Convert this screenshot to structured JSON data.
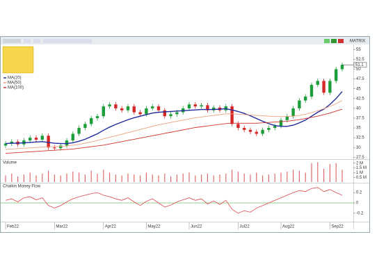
{
  "toolbar": {
    "label": "MATRIX"
  },
  "chart_data": [
    {
      "type": "candlestick",
      "categories": [
        "Feb22",
        null,
        null,
        null,
        null,
        null,
        null,
        null,
        "Mar22",
        null,
        null,
        null,
        null,
        null,
        null,
        null,
        "Apr22",
        null,
        null,
        null,
        null,
        null,
        null,
        "May22",
        null,
        null,
        null,
        null,
        null,
        null,
        "Jun22",
        null,
        null,
        null,
        null,
        null,
        null,
        null,
        "Jul22",
        null,
        null,
        null,
        null,
        null,
        null,
        "Aug22",
        null,
        null,
        null,
        null,
        null,
        null,
        null,
        "Sep22",
        null,
        null
      ],
      "open": [
        30.5,
        31,
        31.5,
        30.8,
        31.8,
        32.5,
        32,
        33,
        30,
        29.8,
        30.5,
        31.8,
        33.5,
        35,
        36,
        37.5,
        38,
        40.5,
        41,
        40,
        39.5,
        40.5,
        39,
        38.5,
        40,
        40.5,
        39.5,
        38,
        38.5,
        39,
        40,
        41,
        40.5,
        40.8,
        39.5,
        40.2,
        39.5,
        40.5,
        36,
        35,
        34.5,
        34,
        33.5,
        34.5,
        35,
        35.5,
        37,
        38,
        40,
        42,
        43,
        46,
        47,
        44,
        47,
        50
      ],
      "high": [
        31.6,
        32.1,
        32.1,
        32.4,
        33.1,
        33.1,
        33.6,
        33.6,
        30.6,
        31.1,
        32.4,
        34.1,
        35.6,
        36.6,
        38.1,
        38.6,
        41.1,
        41.6,
        41.6,
        40.6,
        41.1,
        41.1,
        39.6,
        40.6,
        41.1,
        41.1,
        40.1,
        39.1,
        39.6,
        40.6,
        41.6,
        41.6,
        41.4,
        41.4,
        40.8,
        40.8,
        41.1,
        41.1,
        36.6,
        35.6,
        35.1,
        34.6,
        35.1,
        35.6,
        36.1,
        37.6,
        38.6,
        40.6,
        42.6,
        43.6,
        46.6,
        47.6,
        47.6,
        47.6,
        50.6,
        51.7
      ],
      "low": [
        29.9,
        30.4,
        30.2,
        30.2,
        31.2,
        31.4,
        31.4,
        29.4,
        29.2,
        29.2,
        29.9,
        31.2,
        32.9,
        34.4,
        35.4,
        36.9,
        37.4,
        39.9,
        39.4,
        38.9,
        38.9,
        38.4,
        37.9,
        37.9,
        39.4,
        38.9,
        37.4,
        37.4,
        37.9,
        38.4,
        39.4,
        39.9,
        39.9,
        38.9,
        38.9,
        38.9,
        38.9,
        35.4,
        34.4,
        33.9,
        33.4,
        32.9,
        32.9,
        33.9,
        34.4,
        34.9,
        36.4,
        37.4,
        39.4,
        41.4,
        42.4,
        45.4,
        43.4,
        43.4,
        46.4,
        49.4
      ],
      "close": [
        31,
        31.5,
        30.8,
        31.8,
        32.5,
        32,
        33,
        30,
        29.8,
        30.5,
        31.8,
        33.5,
        35,
        36,
        37.5,
        38,
        40.5,
        41,
        40,
        39.5,
        40.5,
        39,
        38.5,
        40,
        40.5,
        39.5,
        38,
        38.5,
        39,
        40,
        41,
        40.5,
        40.8,
        39.5,
        40.2,
        39.5,
        40.5,
        36,
        35,
        34.5,
        34,
        33.5,
        34.5,
        35,
        35.5,
        37,
        38,
        40,
        42,
        43,
        46,
        47,
        44,
        47,
        50,
        51.1
      ],
      "up_color": "#1e9e3a",
      "down_color": "#d62728",
      "series": [
        {
          "name": "MA(20)",
          "color": "#1f2a9c",
          "values": [
            31,
            31.1,
            31.1,
            31.2,
            31.3,
            31.4,
            31.5,
            31.3,
            31.1,
            31,
            31,
            31.2,
            31.6,
            32.1,
            32.8,
            33.5,
            34.4,
            35.2,
            35.9,
            36.5,
            37.1,
            37.6,
            38,
            38.4,
            38.8,
            39,
            39.1,
            39.2,
            39.3,
            39.4,
            39.5,
            39.6,
            39.7,
            39.7,
            39.7,
            39.8,
            39.9,
            39.6,
            39.2,
            38.7,
            38.1,
            37.4,
            36.7,
            36.1,
            35.6,
            35.4,
            35.4,
            35.7,
            36.3,
            37,
            38,
            39,
            39.8,
            41,
            42.5,
            44.3
          ]
        },
        {
          "name": "MA(50)",
          "color": "#f0a080",
          "values": [
            29.5,
            29.6,
            29.7,
            29.8,
            29.9,
            30,
            30.1,
            30.2,
            30.2,
            30.3,
            30.4,
            30.6,
            30.8,
            31.1,
            31.4,
            31.8,
            32.2,
            32.6,
            33,
            33.4,
            33.8,
            34.2,
            34.6,
            35,
            35.4,
            35.8,
            36.1,
            36.4,
            36.7,
            37,
            37.3,
            37.6,
            37.8,
            38,
            38.2,
            38.4,
            38.6,
            38.6,
            38.5,
            38.4,
            38.3,
            38.2,
            38.1,
            38,
            37.9,
            37.9,
            37.9,
            38,
            38.2,
            38.5,
            38.9,
            39.4,
            39.9,
            40.5,
            41.2,
            42
          ]
        },
        {
          "name": "MA(100)",
          "color": "#d0302b",
          "values": [
            28.5,
            28.6,
            28.7,
            28.8,
            28.9,
            29,
            29.1,
            29.2,
            29.3,
            29.4,
            29.5,
            29.6,
            29.8,
            30,
            30.2,
            30.4,
            30.6,
            30.9,
            31.2,
            31.5,
            31.8,
            32.1,
            32.4,
            32.7,
            33,
            33.3,
            33.6,
            33.9,
            34.2,
            34.5,
            34.8,
            35.1,
            35.3,
            35.5,
            35.7,
            35.9,
            36.1,
            36.2,
            36.2,
            36.2,
            36.2,
            36.2,
            36.3,
            36.4,
            36.5,
            36.6,
            36.7,
            36.9,
            37.1,
            37.4,
            37.7,
            38,
            38.4,
            38.8,
            39.3,
            39.8
          ]
        }
      ],
      "last_price": 51.1,
      "ylim": [
        27.2,
        55.6
      ],
      "yticks": [
        27.5,
        30,
        32.5,
        35,
        37.5,
        40,
        42.5,
        45,
        47.5,
        50,
        52.5,
        55
      ]
    },
    {
      "type": "bar",
      "title": "Volume",
      "color": "#e06a6a",
      "values": [
        700000,
        900000,
        600000,
        800000,
        1000000,
        700000,
        900000,
        1200000,
        800000,
        700000,
        900000,
        1100000,
        1000000,
        800000,
        1200000,
        900000,
        1300000,
        1000000,
        800000,
        700000,
        900000,
        800000,
        700000,
        1000000,
        800000,
        700000,
        900000,
        600000,
        800000,
        900000,
        1000000,
        700000,
        800000,
        900000,
        700000,
        800000,
        900000,
        1300000,
        1100000,
        900000,
        800000,
        1000000,
        700000,
        800000,
        900000,
        1000000,
        1100000,
        1300000,
        1200000,
        1000000,
        2000000,
        2100000,
        1400000,
        1900000,
        2000000,
        1300000
      ],
      "ylim": [
        0,
        2200000
      ],
      "yticks": [
        {
          "value": 500000,
          "label": "0.5 M"
        },
        {
          "value": 1000000,
          "label": "1 M"
        },
        {
          "value": 1500000,
          "label": "1.5 M"
        },
        {
          "value": 2000000,
          "label": "2 M"
        }
      ]
    },
    {
      "type": "line",
      "title": "Chaikin Money Flow",
      "color": "#e04848",
      "zero_color": "#2ca02c",
      "values": [
        0.05,
        0.08,
        0.02,
        0.1,
        0.12,
        0.06,
        0.1,
        -0.05,
        -0.1,
        -0.05,
        0.02,
        0.08,
        0.12,
        0.15,
        0.18,
        0.2,
        0.15,
        0.12,
        0.08,
        0.05,
        0.1,
        0.02,
        -0.05,
        0.03,
        0.08,
        0,
        -0.08,
        -0.04,
        0.02,
        0.06,
        0.1,
        0.05,
        0.08,
        -0.02,
        0.04,
        -0.03,
        0.05,
        -0.12,
        -0.2,
        -0.15,
        -0.18,
        -0.1,
        -0.05,
        0,
        0.05,
        0.1,
        0.15,
        0.2,
        0.24,
        0.22,
        0.28,
        0.3,
        0.22,
        0.26,
        0.2,
        0.15
      ],
      "ylim": [
        -0.35,
        0.35
      ],
      "yticks": [
        -0.2,
        0,
        0.2
      ]
    }
  ]
}
